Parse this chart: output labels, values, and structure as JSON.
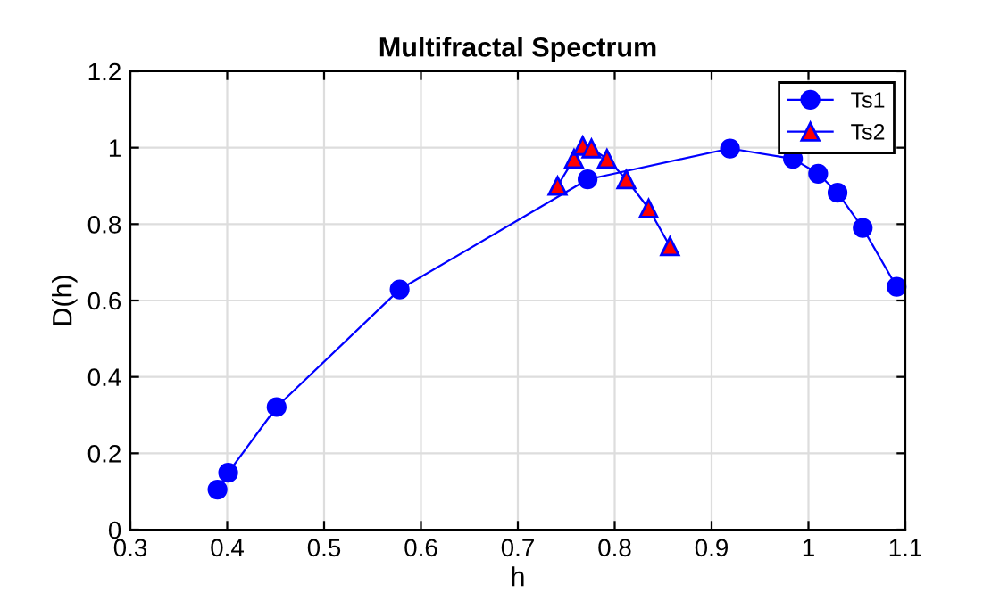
{
  "chart_data": {
    "type": "line",
    "title": "Multifractal Spectrum",
    "xlabel": "h",
    "ylabel": "D(h)",
    "xlim": [
      0.3,
      1.1
    ],
    "xticks": [
      0.3,
      0.4,
      0.5,
      0.6,
      0.7,
      0.8,
      0.9,
      1,
      1.1
    ],
    "ylim": [
      0,
      1.2
    ],
    "yticks": [
      0,
      0.2,
      0.4,
      0.6,
      0.8,
      1,
      1.2
    ],
    "grid": true,
    "legend": "top right",
    "series": [
      {
        "name": "Ts1",
        "color": "#0000ff",
        "marker": "circle",
        "x": [
          0.39,
          0.401,
          0.451,
          0.578,
          0.772,
          0.919,
          0.984,
          1.01,
          1.03,
          1.056,
          1.091
        ],
        "values": [
          0.105,
          0.149,
          0.321,
          0.629,
          0.917,
          0.998,
          0.971,
          0.932,
          0.882,
          0.79,
          0.636
        ]
      },
      {
        "name": "Ts2",
        "color": "#ff0000",
        "marker": "triangle",
        "x": [
          0.741,
          0.758,
          0.767,
          0.776,
          0.792,
          0.812,
          0.835,
          0.857
        ],
        "values": [
          0.9,
          0.971,
          1.005,
          0.998,
          0.971,
          0.917,
          0.841,
          0.742
        ]
      }
    ]
  }
}
